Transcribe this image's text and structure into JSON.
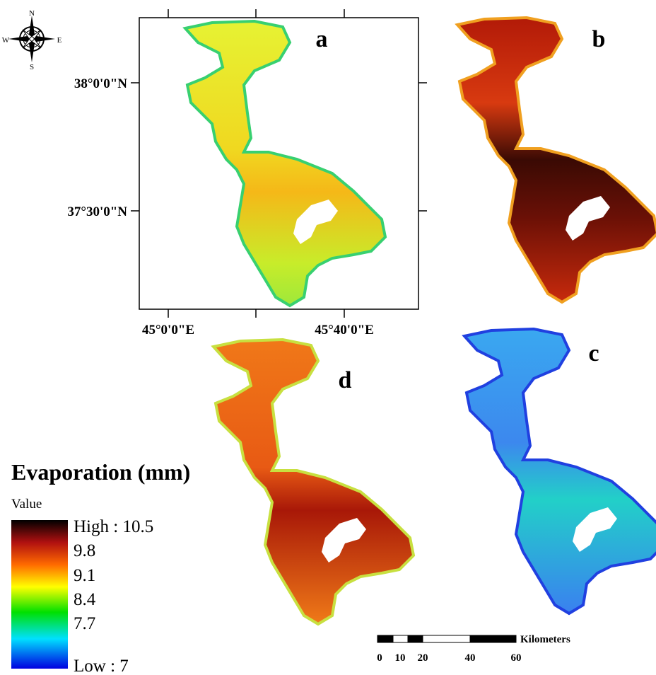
{
  "map": {
    "north_arrow": {
      "n": "N",
      "e": "E",
      "s": "S",
      "w": "W"
    },
    "latitude_labels": [
      "38°0'0\"N",
      "37°30'0\"N"
    ],
    "longitude_labels": [
      "45°0'0\"E",
      "45°40'0\"E"
    ],
    "panels": [
      "a",
      "b",
      "c",
      "d"
    ],
    "legend": {
      "title": "Evaporation (mm)",
      "subtitle": "Value",
      "labels": [
        "High : 10.5",
        "9.8",
        "9.1",
        "8.4",
        "7.7",
        "Low : 7"
      ]
    },
    "scale_bar": {
      "unit": "Kilometers",
      "labels": [
        "0",
        "10",
        "20",
        "40",
        "60"
      ]
    }
  }
}
